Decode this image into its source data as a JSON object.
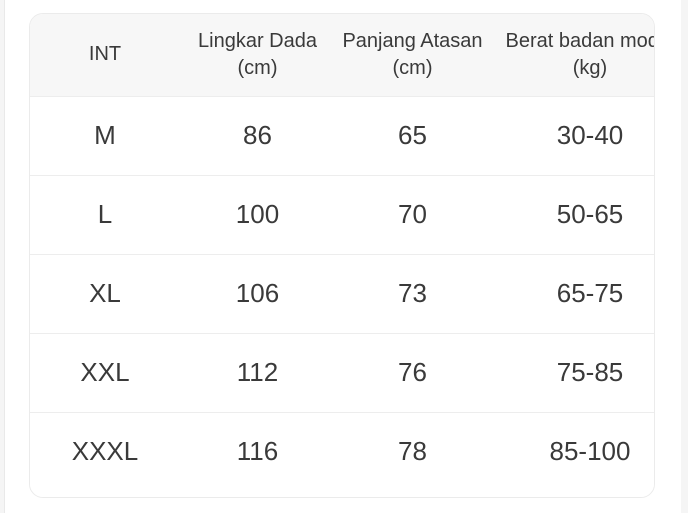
{
  "card": {
    "columns": [
      {
        "line1": "INT",
        "line2": ""
      },
      {
        "line1": "Lingkar Dada",
        "line2": "(cm)"
      },
      {
        "line1": "Panjang Atasan",
        "line2": "(cm)"
      },
      {
        "line1": "Berat badan model",
        "line2": "(kg)"
      }
    ],
    "rows": [
      [
        "M",
        "86",
        "65",
        "30-40"
      ],
      [
        "L",
        "100",
        "70",
        "50-65"
      ],
      [
        "XL",
        "106",
        "73",
        "65-75"
      ],
      [
        "XXL",
        "112",
        "76",
        "75-85"
      ],
      [
        "XXXL",
        "116",
        "78",
        "85-100"
      ]
    ]
  },
  "colors": {
    "background": "#ffffff",
    "header_bg": "#f7f7f7",
    "divider": "#ededed",
    "card_border": "#ebebeb",
    "text": "#3a3a3a"
  }
}
